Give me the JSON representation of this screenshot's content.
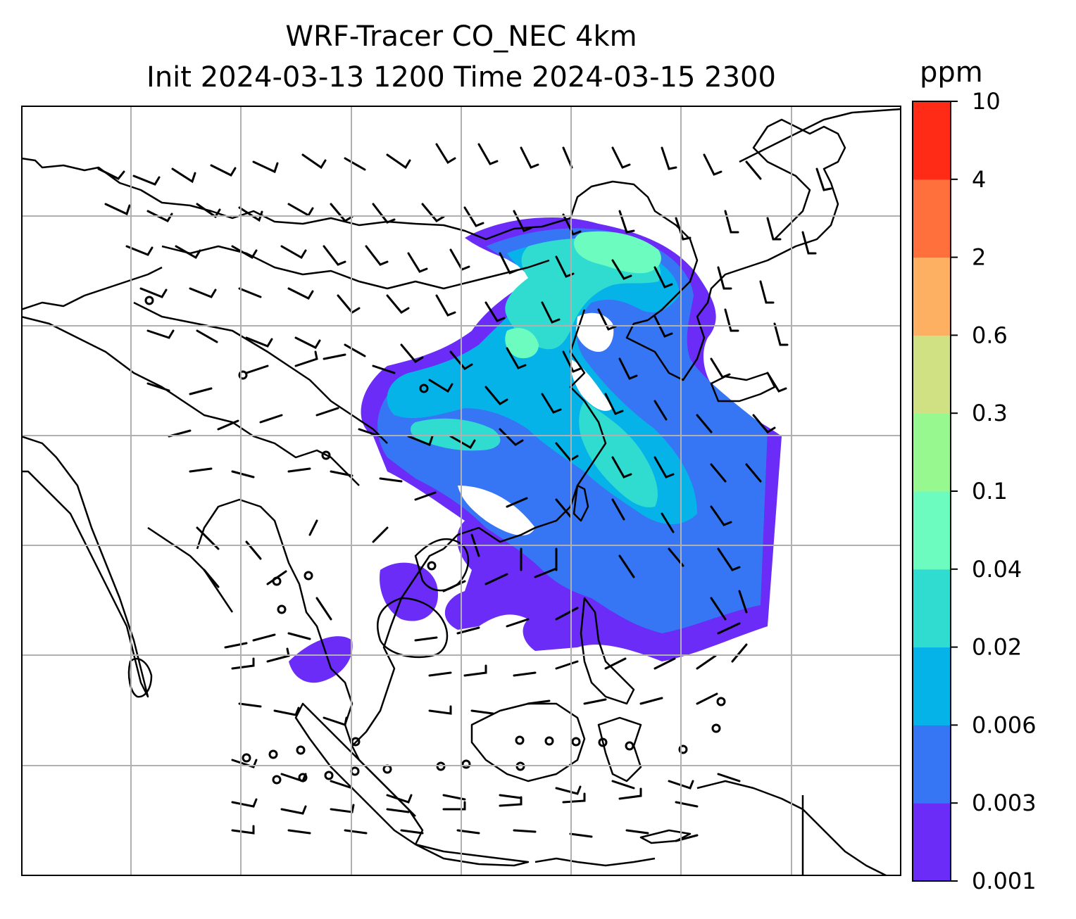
{
  "title": {
    "line1": "WRF-Tracer CO_NEC 4km",
    "line2": "Init 2024-03-13 1200 Time 2024-03-15 2300"
  },
  "colorbar": {
    "unit": "ppm",
    "ticks": [
      "0.001",
      "0.003",
      "0.006",
      "0.02",
      "0.04",
      "0.1",
      "0.3",
      "0.6",
      "2",
      "4",
      "10"
    ],
    "colors": [
      "#6a2cf6",
      "#3676f4",
      "#06b3e8",
      "#30dcd0",
      "#6cfcc0",
      "#98f890",
      "#d0e184",
      "#fdaf62",
      "#ff703c",
      "#ff2b17"
    ]
  },
  "map": {
    "grid": true,
    "plume_colors": {
      "c1": "#6a2cf6",
      "c2": "#3676f4",
      "c3": "#06b3e8",
      "c4": "#30dcd0",
      "c5": "#6cfcc0"
    }
  }
}
